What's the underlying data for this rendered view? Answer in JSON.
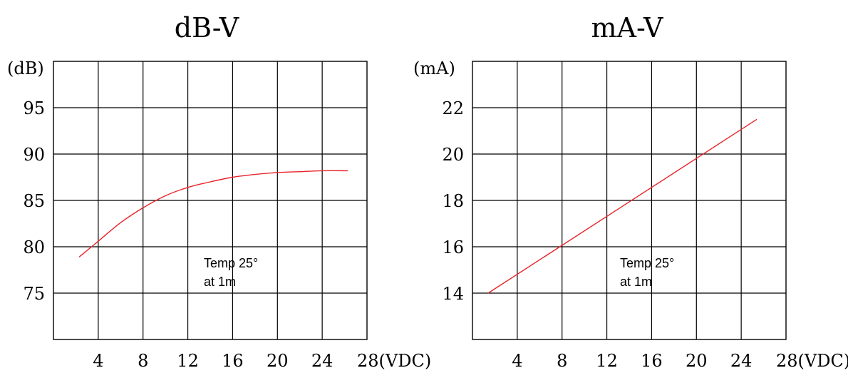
{
  "colors": {
    "curve": "#e8232a",
    "grid": "#000000",
    "background": "#ffffff"
  },
  "chart_data": [
    {
      "type": "line",
      "title": "dB-V",
      "ylabel": "(dB)",
      "x_tick_labels": [
        "4",
        "8",
        "12",
        "16",
        "20",
        "24",
        "28(VDC)"
      ],
      "x_ticks": [
        4,
        8,
        12,
        16,
        20,
        24,
        28
      ],
      "y_tick_labels": [
        "95",
        "90",
        "85",
        "80",
        "75"
      ],
      "y_ticks": [
        95,
        90,
        85,
        80,
        75
      ],
      "xlim": [
        0,
        28
      ],
      "ylim": [
        70,
        100
      ],
      "grid": true,
      "annotation": [
        "Temp 25°",
        "at 1m"
      ],
      "series": [
        {
          "x": [
            2.3,
            4,
            6,
            8,
            10,
            12,
            14,
            16,
            18,
            20,
            22,
            24,
            26.3
          ],
          "y": [
            78.9,
            80.6,
            82.6,
            84.2,
            85.5,
            86.4,
            87.0,
            87.5,
            87.8,
            88.0,
            88.1,
            88.2,
            88.2
          ]
        }
      ]
    },
    {
      "type": "line",
      "title": "mA-V",
      "ylabel": "(mA)",
      "x_tick_labels": [
        "4",
        "8",
        "12",
        "16",
        "20",
        "24",
        "28(VDC)"
      ],
      "x_ticks": [
        4,
        8,
        12,
        16,
        20,
        24,
        28
      ],
      "y_tick_labels": [
        "22",
        "20",
        "18",
        "16",
        "14"
      ],
      "y_ticks": [
        22,
        20,
        18,
        16,
        14
      ],
      "xlim": [
        0,
        28
      ],
      "ylim": [
        12,
        24
      ],
      "grid": true,
      "annotation": [
        "Temp 25°",
        "at 1m"
      ],
      "series": [
        {
          "x": [
            1.4,
            25.4
          ],
          "y": [
            14.0,
            21.5
          ]
        }
      ]
    }
  ]
}
